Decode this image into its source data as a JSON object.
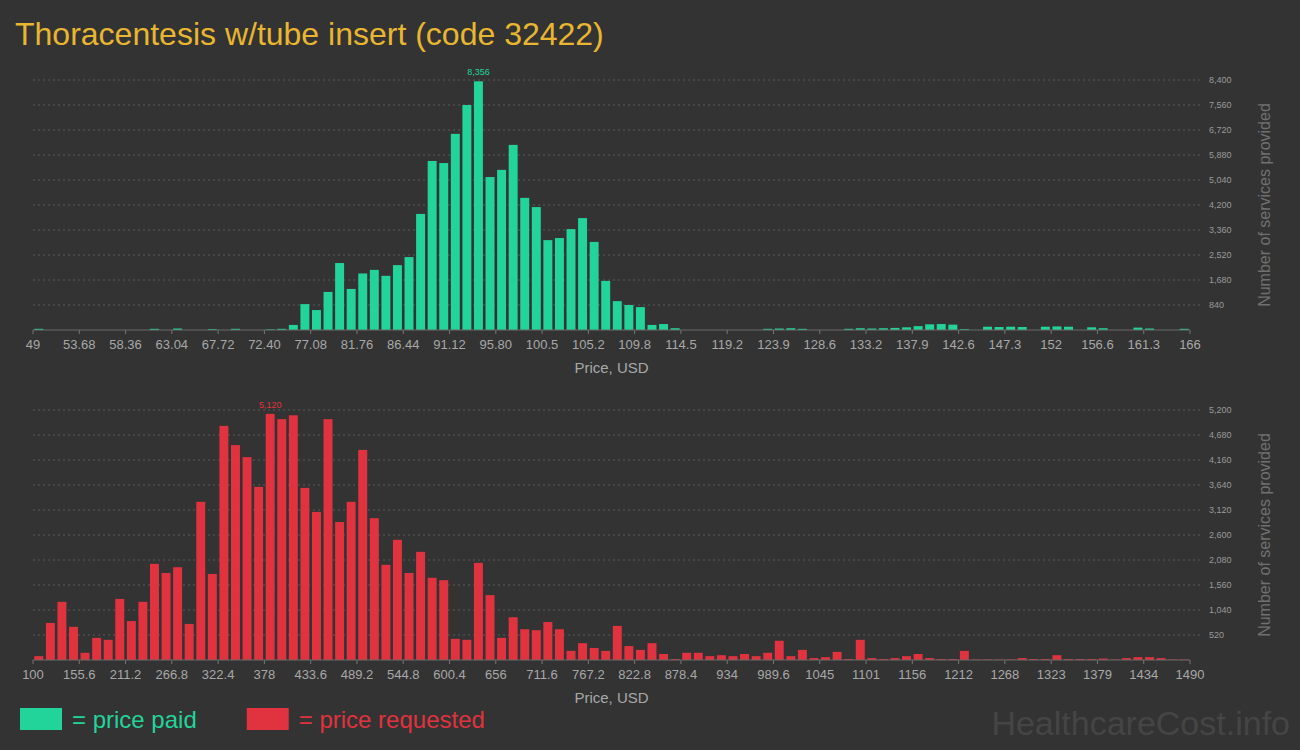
{
  "title": "Thoracentesis w/tube insert (code 32422)",
  "watermark": "HealthcareCost.info",
  "chart_data": [
    {
      "type": "histogram",
      "series": [
        {
          "name": "= price paid",
          "color": "#22d39a",
          "values": [
            40,
            0,
            0,
            0,
            0,
            0,
            0,
            0,
            0,
            0,
            40,
            0,
            50,
            0,
            0,
            30,
            0,
            40,
            0,
            0,
            20,
            40,
            170,
            870,
            670,
            1280,
            2250,
            1380,
            1900,
            2020,
            1820,
            2180,
            2450,
            3900,
            5680,
            5610,
            6590,
            7560,
            8356,
            5140,
            5380,
            6220,
            4440,
            4130,
            3020,
            3090,
            3390,
            3760,
            2960,
            1650,
            970,
            840,
            770,
            170,
            200,
            60,
            0,
            0,
            0,
            0,
            0,
            0,
            0,
            40,
            50,
            60,
            40,
            0,
            0,
            0,
            40,
            60,
            50,
            60,
            70,
            90,
            130,
            190,
            200,
            180,
            30,
            0,
            110,
            100,
            110,
            100,
            0,
            110,
            120,
            110,
            0,
            90,
            60,
            0,
            0,
            80,
            50,
            0,
            0,
            40
          ]
        }
      ],
      "bins": [
        49,
        50.17,
        51.34,
        52.51,
        53.68,
        54.85,
        56.02,
        57.19,
        58.36,
        59.53,
        60.7,
        61.87,
        63.04,
        64.21,
        65.38,
        66.55,
        67.72,
        68.89,
        70.06,
        71.23,
        72.4,
        73.57,
        74.74,
        75.91,
        77.08,
        78.25,
        79.42,
        80.59,
        81.76,
        82.93,
        84.1,
        85.27,
        86.44,
        87.61,
        88.78,
        89.95,
        91.12,
        92.29,
        93.46,
        94.63,
        95.8,
        96.97,
        98.14,
        99.31,
        100.48,
        101.65,
        102.82,
        103.99,
        105.16,
        106.33,
        107.5,
        108.67,
        109.84,
        111.01,
        112.18,
        113.35,
        114.52,
        115.69,
        116.86,
        118.03,
        119.2,
        120.37,
        121.54,
        122.71,
        123.88,
        125.05,
        126.22,
        127.39,
        128.56,
        129.73,
        130.9,
        132.07,
        133.24,
        134.41,
        135.58,
        136.75,
        137.92,
        139.09,
        140.26,
        141.43,
        142.6,
        143.77,
        144.94,
        146.11,
        147.28,
        148.45,
        149.62,
        150.79,
        151.96,
        153.13,
        154.3,
        155.47,
        156.64,
        157.81,
        158.98,
        160.15,
        161.32,
        162.49,
        163.66,
        164.83,
        166
      ],
      "x_label": "Price, USD",
      "y_label": "Number of services provided",
      "xlim": [
        49,
        166
      ],
      "xticks": [
        49,
        53.68,
        58.36,
        63.04,
        67.72,
        {
          "value": 72.4,
          "label": "72.40"
        },
        77.08,
        81.76,
        86.44,
        91.12,
        {
          "value": 95.8,
          "label": "95.80"
        },
        {
          "value": 100.48,
          "label": "100.5"
        },
        {
          "value": 105.16,
          "label": "105.2"
        },
        {
          "value": 109.84,
          "label": "109.8"
        },
        {
          "value": 114.52,
          "label": "114.5"
        },
        119.2,
        {
          "value": 123.88,
          "label": "123.9"
        },
        {
          "value": 128.56,
          "label": "128.6"
        },
        {
          "value": 133.24,
          "label": "133.2"
        },
        {
          "value": 137.92,
          "label": "137.9"
        },
        142.6,
        {
          "value": 147.28,
          "label": "147.3"
        },
        {
          "value": 151.96,
          "label": "152"
        },
        {
          "value": 156.64,
          "label": "156.6"
        },
        {
          "value": 161.32,
          "label": "161.3"
        },
        166
      ],
      "ylim": [
        0,
        8400
      ],
      "yticks": [
        840,
        {
          "value": 1680,
          "label": "1,680"
        },
        {
          "value": 2520,
          "label": "2,520"
        },
        {
          "value": 3360,
          "label": "3,360"
        },
        {
          "value": 4200,
          "label": "4,200"
        },
        {
          "value": 5040,
          "label": "5,040"
        },
        {
          "value": 5880,
          "label": "5,880"
        },
        {
          "value": 6720,
          "label": "6,720"
        },
        {
          "value": 7560,
          "label": "7,560"
        },
        {
          "value": 8400,
          "label": "8,400"
        }
      ],
      "grid": true,
      "legend": "bottom-left",
      "annotations": [
        {
          "text": "8,356",
          "x": 94.045,
          "y": 8356
        }
      ]
    },
    {
      "type": "histogram",
      "series": [
        {
          "name": "= price requested",
          "color": "#e0323f",
          "values": [
            80,
            770,
            1210,
            690,
            150,
            460,
            420,
            1270,
            810,
            1210,
            2000,
            1810,
            1930,
            750,
            3290,
            1790,
            4870,
            4470,
            4220,
            3600,
            5120,
            5010,
            5090,
            3580,
            3080,
            5010,
            2870,
            3290,
            4370,
            2950,
            1980,
            2500,
            1810,
            2250,
            1710,
            1660,
            440,
            420,
            2020,
            1350,
            460,
            890,
            640,
            620,
            790,
            640,
            190,
            350,
            250,
            190,
            710,
            290,
            210,
            350,
            125,
            20,
            150,
            150,
            80,
            100,
            80,
            125,
            80,
            150,
            400,
            80,
            210,
            40,
            60,
            170,
            20,
            420,
            40,
            20,
            40,
            80,
            125,
            40,
            20,
            20,
            190,
            10,
            10,
            10,
            10,
            40,
            20,
            20,
            100,
            20,
            20,
            20,
            30,
            10,
            40,
            60,
            60,
            40,
            10,
            10
          ]
        }
      ],
      "bins": [
        100,
        113.9,
        127.8,
        141.7,
        155.6,
        169.5,
        183.4,
        197.3,
        211.2,
        225.1,
        239,
        252.9,
        266.8,
        280.7,
        294.6,
        308.5,
        322.4,
        336.3,
        350.2,
        364.1,
        378,
        391.9,
        405.8,
        419.7,
        433.6,
        447.5,
        461.4,
        475.3,
        489.2,
        503.1,
        517,
        530.9,
        544.8,
        558.7,
        572.6,
        586.5,
        600.4,
        614.3,
        628.2,
        642.1,
        656,
        669.9,
        683.8,
        697.7,
        711.6,
        725.5,
        739.4,
        753.3,
        767.2,
        781.1,
        795,
        808.9,
        822.8,
        836.7,
        850.6,
        864.5,
        878.4,
        892.3,
        906.2,
        920.1,
        934,
        947.9,
        961.8,
        975.7,
        989.6,
        1003.5,
        1017.4,
        1031.3,
        1045.2,
        1059.1,
        1073,
        1086.9,
        1100.8,
        1114.7,
        1128.6,
        1142.5,
        1156.4,
        1170.3,
        1184.2,
        1198.1,
        1212,
        1225.9,
        1239.8,
        1253.7,
        1267.6,
        1281.5,
        1295.4,
        1309.3,
        1323.2,
        1337.1,
        1351,
        1364.9,
        1378.8,
        1392.7,
        1406.6,
        1420.5,
        1434.4,
        1448.3,
        1462.2,
        1476.1,
        1490
      ],
      "x_label": "Price, USD",
      "y_label": "Number of services provided",
      "xlim": [
        100,
        1490
      ],
      "xticks": [
        100,
        155.6,
        211.2,
        266.8,
        322.4,
        378,
        433.6,
        489.2,
        544.8,
        600.4,
        656,
        711.6,
        767.2,
        822.8,
        878.4,
        934,
        989.6,
        {
          "value": 1045.2,
          "label": "1045"
        },
        {
          "value": 1100.8,
          "label": "1101"
        },
        {
          "value": 1156.4,
          "label": "1156"
        },
        1212,
        {
          "value": 1267.6,
          "label": "1268"
        },
        {
          "value": 1323.2,
          "label": "1323"
        },
        {
          "value": 1378.8,
          "label": "1379"
        },
        {
          "value": 1434.4,
          "label": "1434"
        },
        1490
      ],
      "ylim": [
        0,
        5200
      ],
      "yticks": [
        520,
        {
          "value": 1040,
          "label": "1,040"
        },
        {
          "value": 1560,
          "label": "1,560"
        },
        {
          "value": 2080,
          "label": "2,080"
        },
        {
          "value": 2600,
          "label": "2,600"
        },
        {
          "value": 3120,
          "label": "3,120"
        },
        {
          "value": 3640,
          "label": "3,640"
        },
        {
          "value": 4160,
          "label": "4,160"
        },
        {
          "value": 4680,
          "label": "4,680"
        },
        {
          "value": 5200,
          "label": "5,200"
        }
      ],
      "grid": true,
      "legend": "bottom-left",
      "annotations": [
        {
          "text": "5,120",
          "x": 384.95,
          "y": 5120
        }
      ]
    }
  ]
}
